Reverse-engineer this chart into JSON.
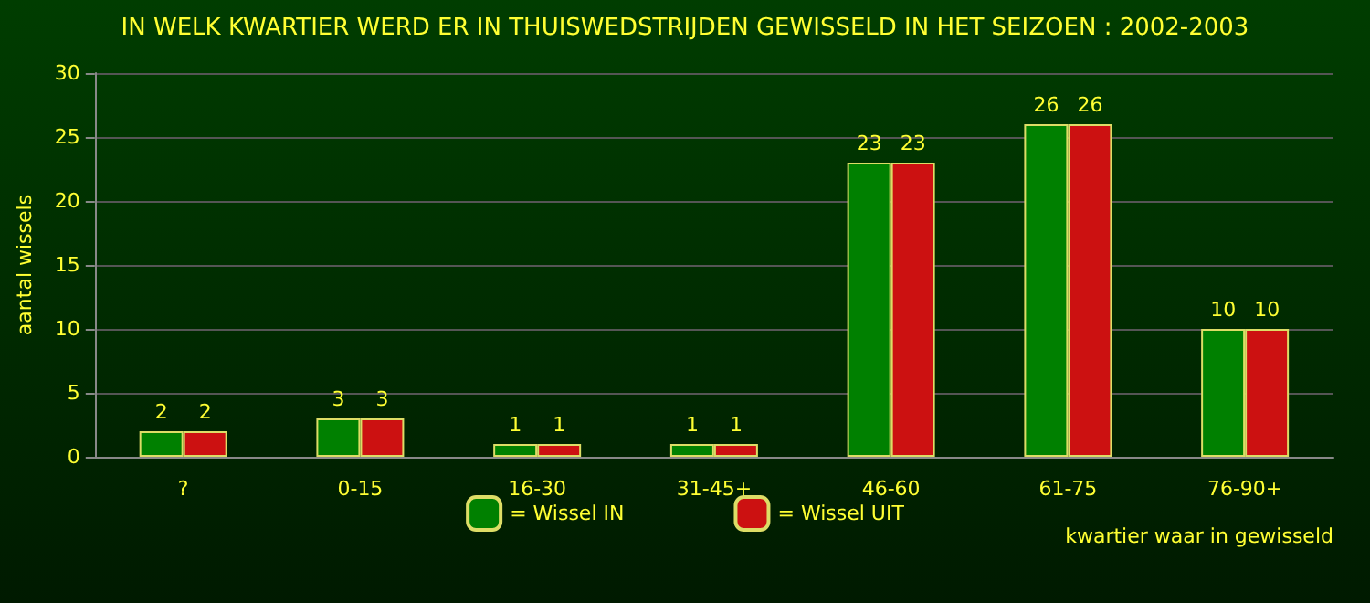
{
  "chart_data": {
    "type": "bar",
    "title": "IN WELK KWARTIER WERD ER IN THUISWEDSTRIJDEN GEWISSELD IN HET SEIZOEN : 2002-2003",
    "xlabel": "kwartier waar in gewisseld",
    "ylabel": "aantal wissels",
    "categories": [
      "?",
      "0-15",
      "16-30",
      "31-45+",
      "46-60",
      "61-75",
      "76-90+"
    ],
    "series": [
      {
        "name": "= Wissel IN",
        "color": "#008000",
        "values": [
          2,
          3,
          1,
          1,
          23,
          26,
          10
        ]
      },
      {
        "name": "= Wissel UIT",
        "color": "#cc1111",
        "values": [
          2,
          3,
          1,
          1,
          23,
          26,
          10
        ]
      }
    ],
    "ylim": [
      0,
      30
    ],
    "yticks": [
      0,
      5,
      10,
      15,
      20,
      25,
      30
    ],
    "grid": "y",
    "legend": "bottom",
    "data_labels": true
  }
}
